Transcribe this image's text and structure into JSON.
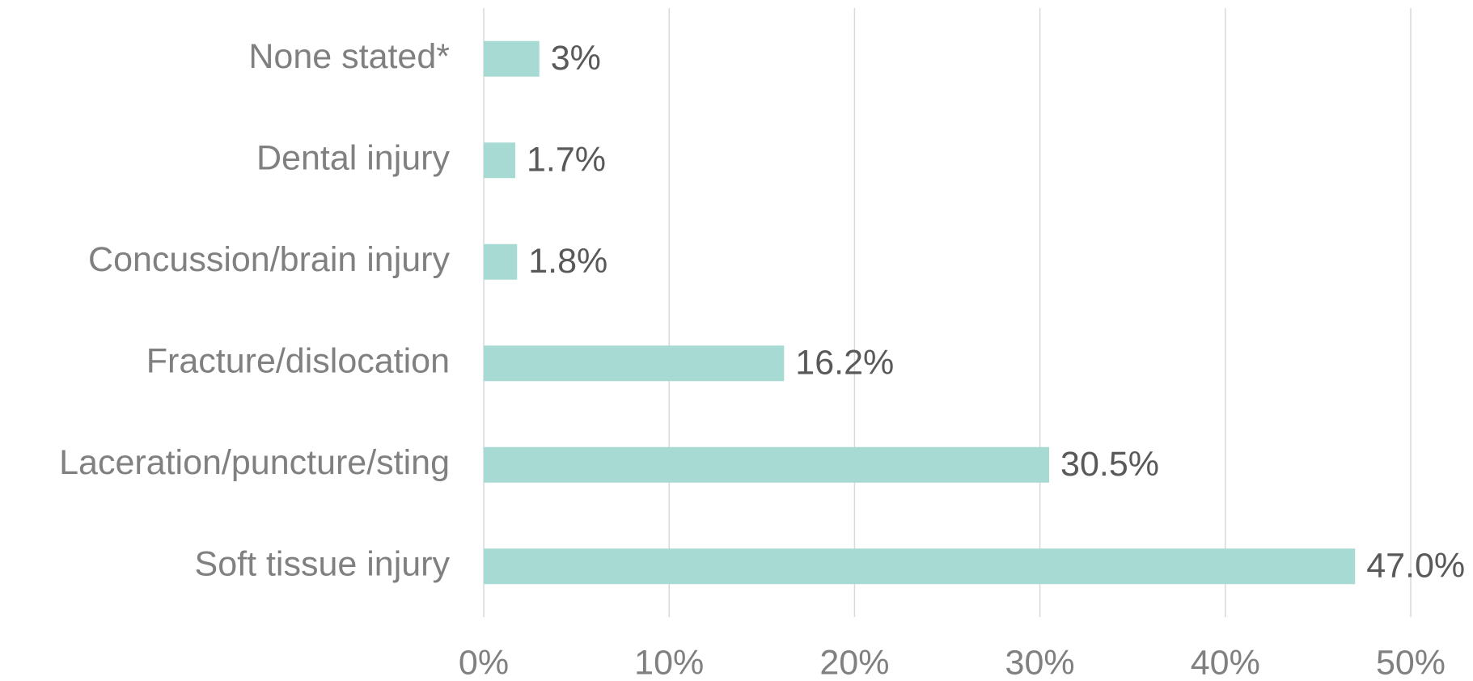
{
  "chart_data": {
    "type": "barh",
    "categories": [
      "None stated*",
      "Dental injury",
      "Concussion/brain injury",
      "Fracture/dislocation",
      "Laceration/puncture/sting",
      "Soft tissue injury"
    ],
    "values": [
      3,
      1.7,
      1.8,
      16.2,
      30.5,
      47.0
    ],
    "value_labels": [
      "3%",
      "1.7%",
      "1.8%",
      "16.2%",
      "30.5%",
      "47.0%"
    ],
    "color": "#a6dad3",
    "xlim": [
      0,
      50
    ],
    "xticks": [
      {
        "value": 0,
        "label": "0%"
      },
      {
        "value": 10,
        "label": "10%"
      },
      {
        "value": 20,
        "label": "20%"
      },
      {
        "value": 30,
        "label": "30%"
      },
      {
        "value": 40,
        "label": "40%"
      },
      {
        "value": 50,
        "label": "50%"
      }
    ],
    "grid": true
  }
}
